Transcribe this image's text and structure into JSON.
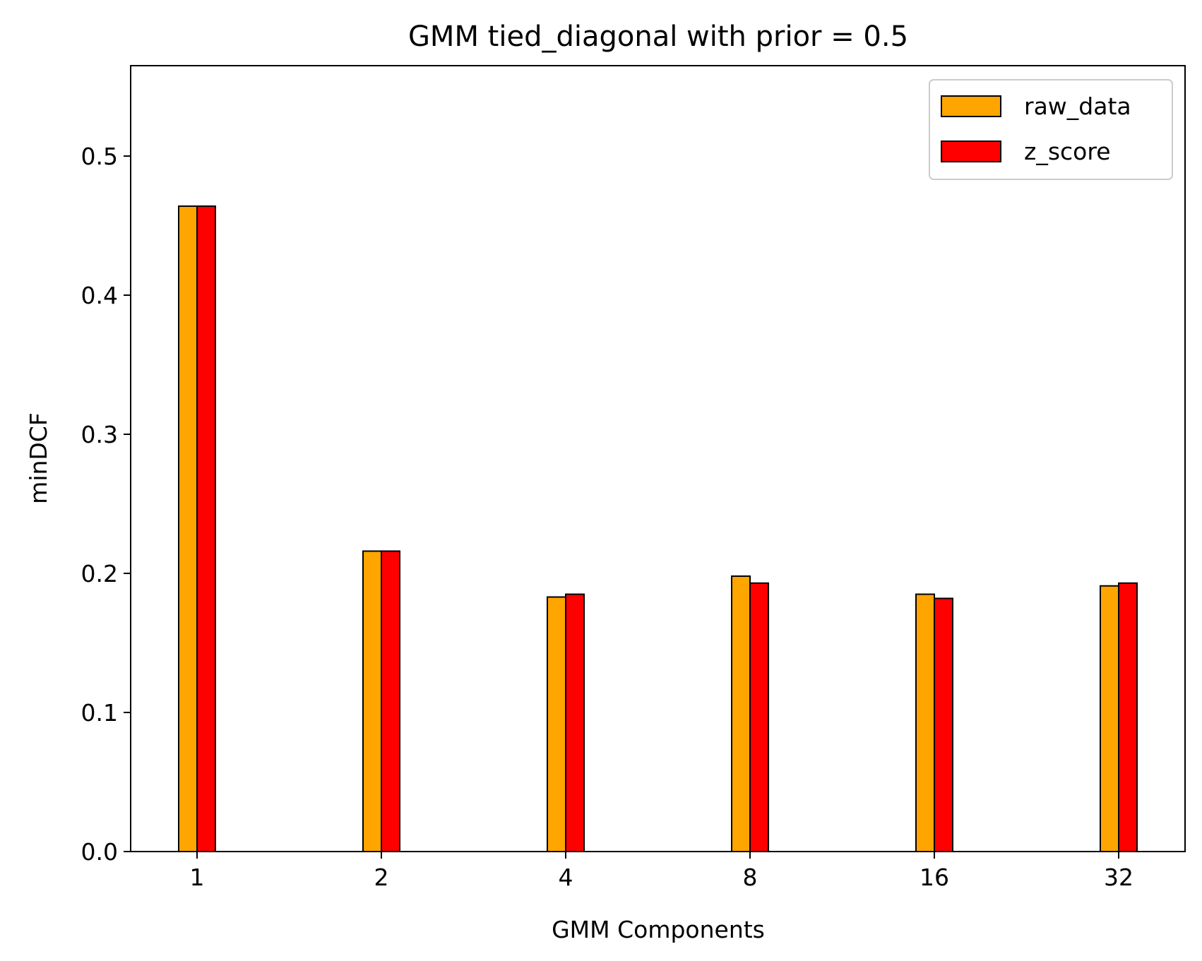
{
  "chart_data": {
    "type": "bar",
    "title": "GMM tied_diagonal with prior = 0.5",
    "xlabel": "GMM Components",
    "ylabel": "minDCF",
    "categories": [
      "1",
      "2",
      "4",
      "8",
      "16",
      "32"
    ],
    "series": [
      {
        "name": "raw_data",
        "color": "#FFA500",
        "values": [
          0.464,
          0.216,
          0.183,
          0.198,
          0.185,
          0.191
        ]
      },
      {
        "name": "z_score",
        "color": "#FF0000",
        "values": [
          0.464,
          0.216,
          0.185,
          0.193,
          0.182,
          0.193
        ]
      }
    ],
    "ylim": [
      0,
      0.565
    ],
    "yticks": [
      "0.0",
      "0.1",
      "0.2",
      "0.3",
      "0.4",
      "0.5"
    ],
    "legend_position": "top-right",
    "grid": false
  }
}
